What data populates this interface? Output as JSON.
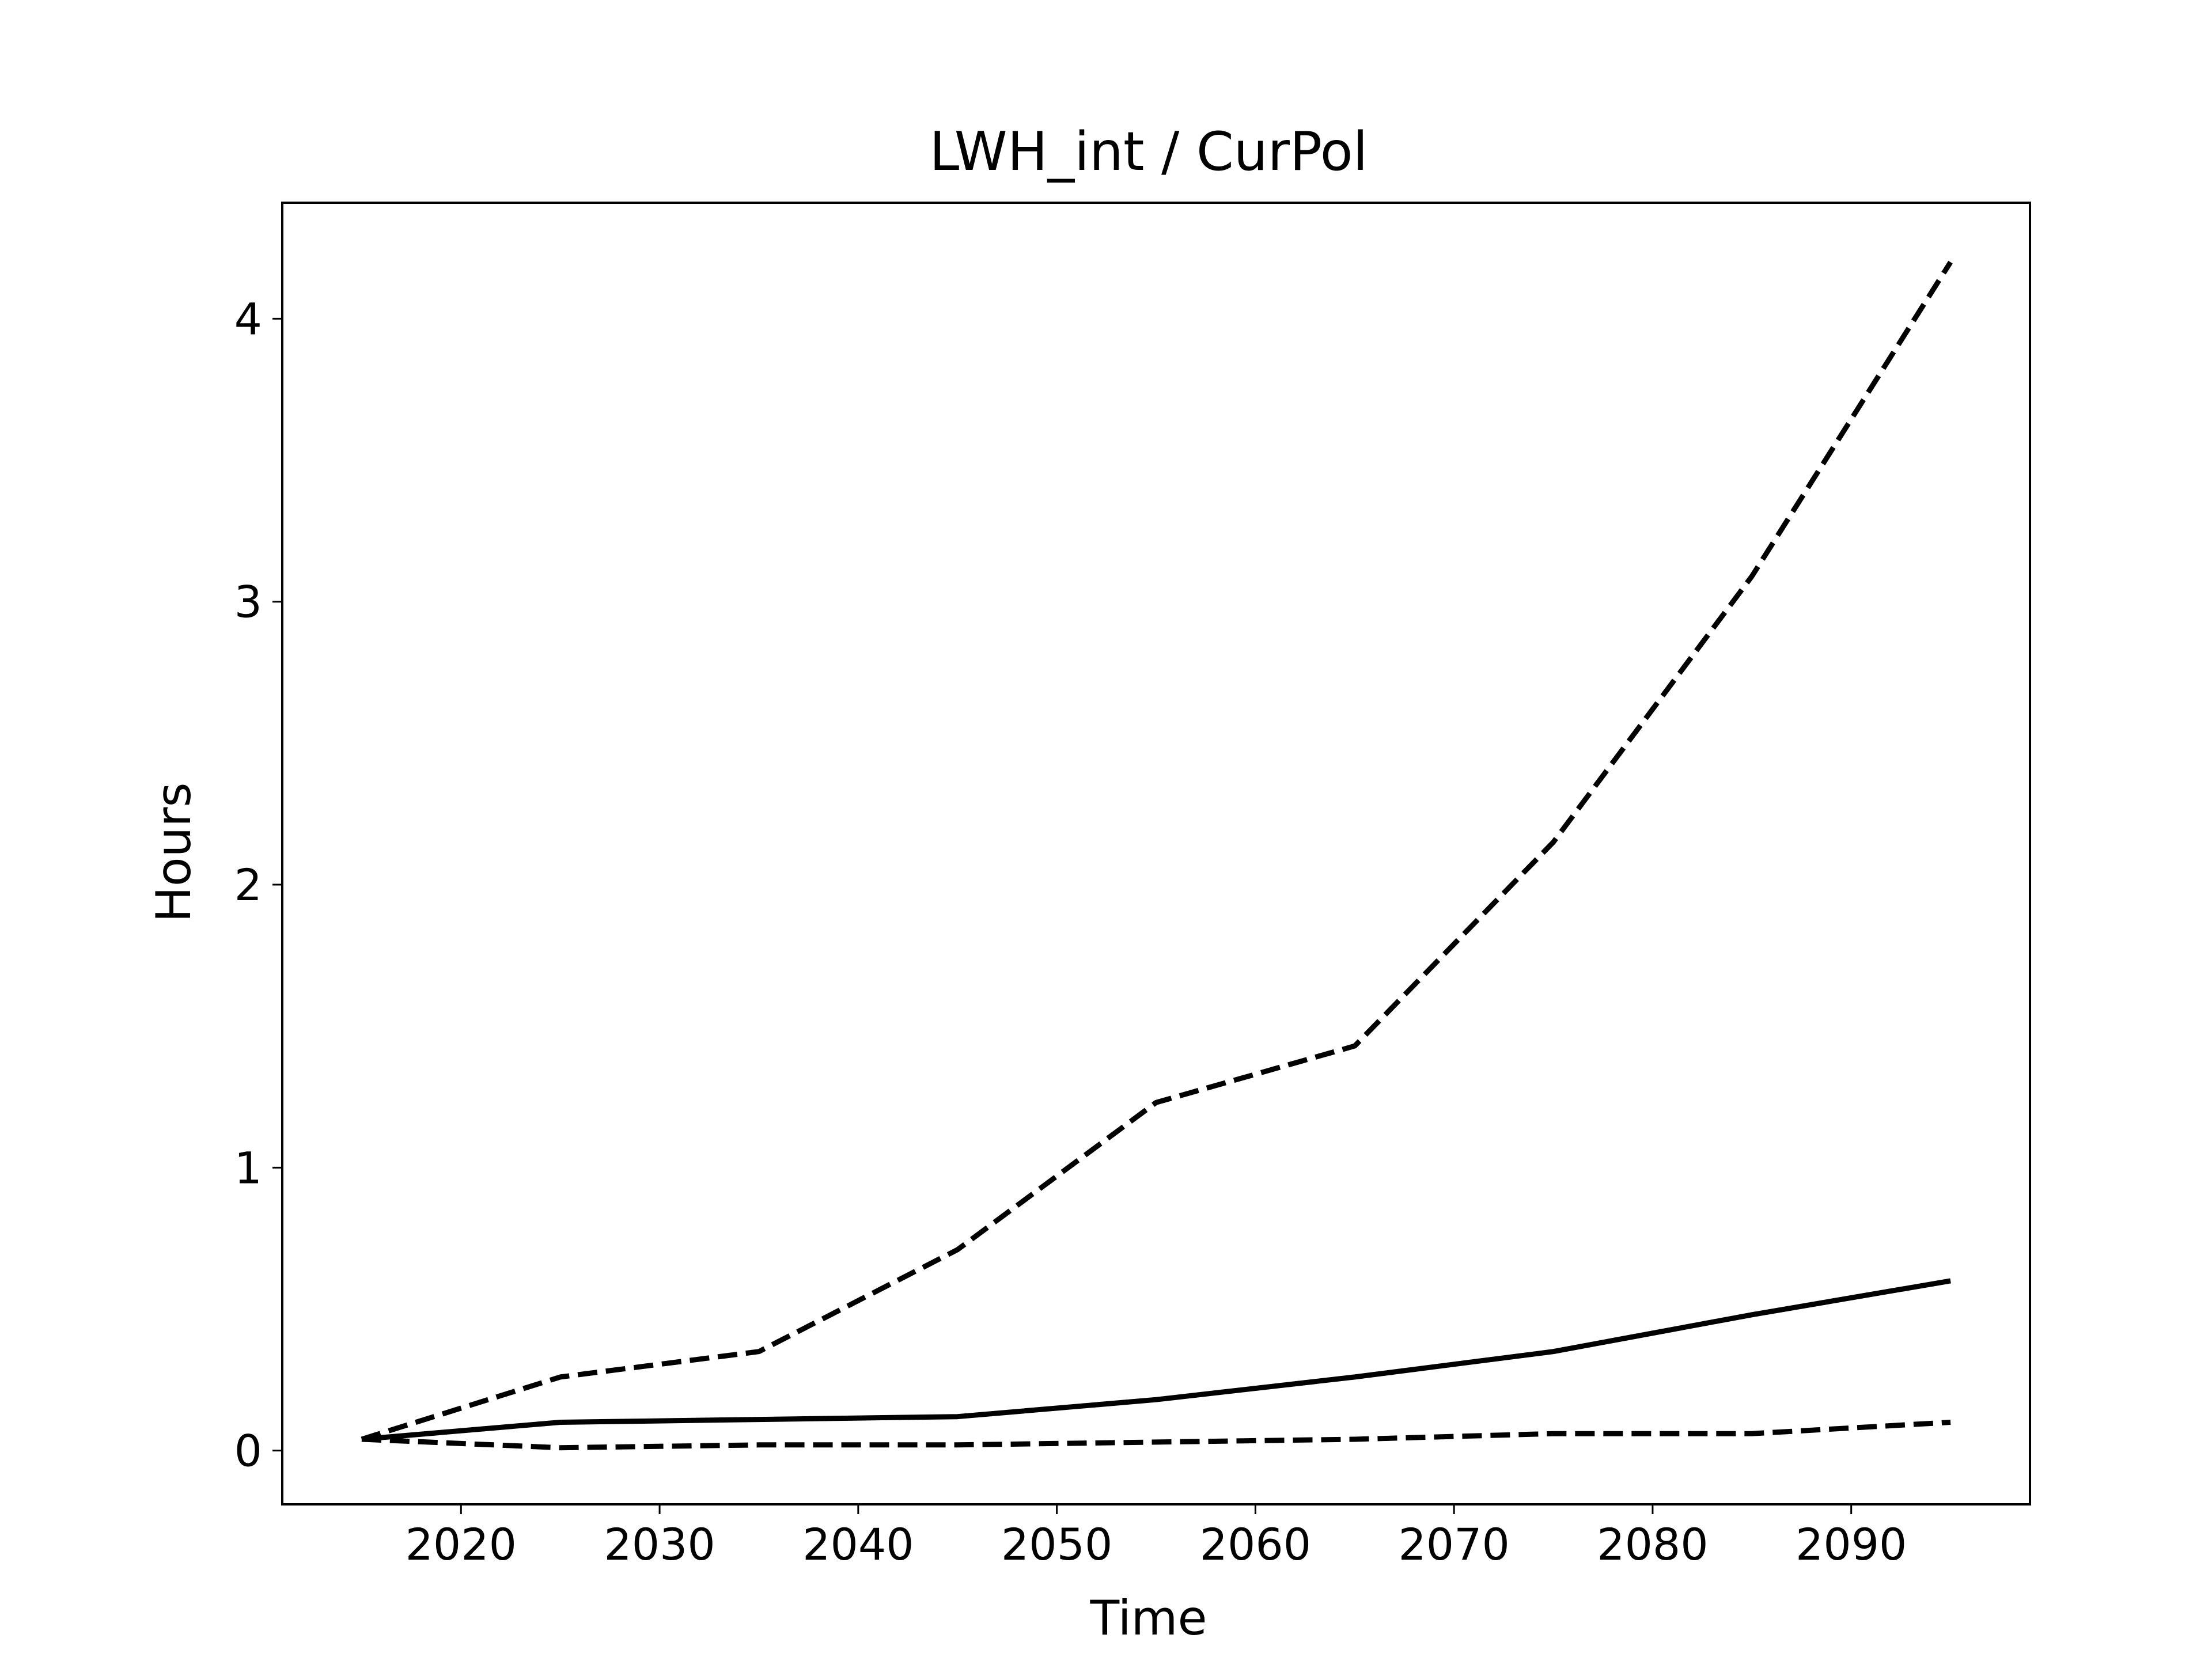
{
  "chart_data": {
    "type": "line",
    "title": "LWH_int / CurPol",
    "xlabel": "Time",
    "ylabel": "Hours",
    "x": [
      2015,
      2025,
      2035,
      2045,
      2055,
      2065,
      2075,
      2085,
      2095
    ],
    "series": [
      {
        "style": "solid",
        "color": "#000000",
        "values": [
          0.04,
          0.1,
          0.11,
          0.12,
          0.18,
          0.26,
          0.35,
          0.48,
          0.6
        ]
      },
      {
        "style": "dashed",
        "color": "#000000",
        "values": [
          0.04,
          0.26,
          0.35,
          0.71,
          1.23,
          1.43,
          2.15,
          3.09,
          4.2
        ]
      },
      {
        "style": "dashed",
        "color": "#000000",
        "values": [
          0.04,
          0.01,
          0.02,
          0.02,
          0.03,
          0.04,
          0.06,
          0.06,
          0.1
        ]
      }
    ],
    "xlim": [
      2011.0,
      2099.0
    ],
    "ylim": [
      -0.19,
      4.41
    ],
    "xticks": [
      2020,
      2030,
      2040,
      2050,
      2060,
      2070,
      2080,
      2090
    ],
    "yticks": [
      0,
      1,
      2,
      3,
      4
    ],
    "grid": false,
    "legend": "none"
  }
}
